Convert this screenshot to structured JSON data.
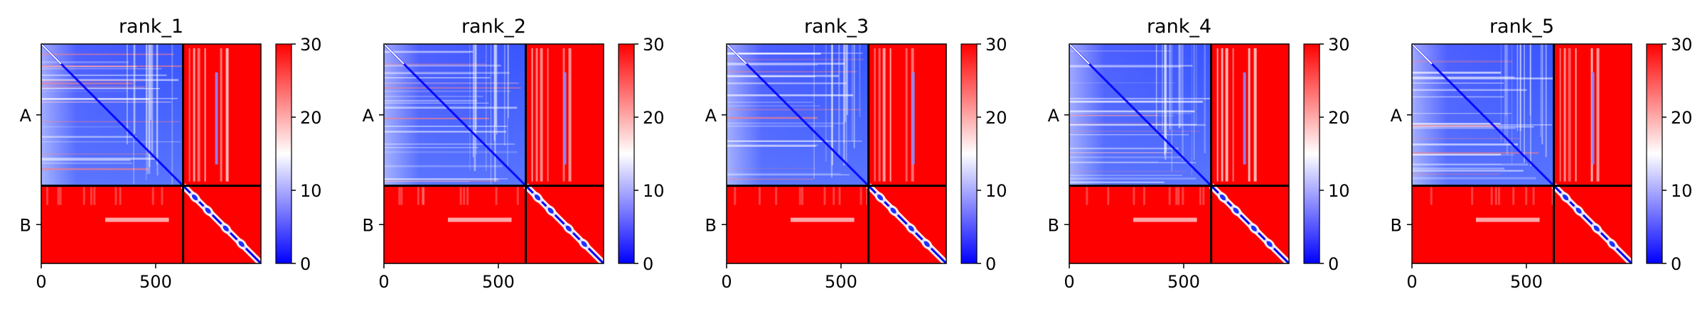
{
  "chart_data": [
    {
      "type": "heatmap",
      "title": "rank_1",
      "chains": [
        "A",
        "B"
      ],
      "xticks": [
        0,
        500
      ],
      "colorbar": {
        "ticks": [
          0,
          10,
          20,
          30
        ],
        "min": 0,
        "max": 30
      }
    },
    {
      "type": "heatmap",
      "title": "rank_2",
      "chains": [
        "A",
        "B"
      ],
      "xticks": [
        0,
        500
      ],
      "colorbar": {
        "ticks": [
          0,
          10,
          20,
          30
        ],
        "min": 0,
        "max": 30
      }
    },
    {
      "type": "heatmap",
      "title": "rank_3",
      "chains": [
        "A",
        "B"
      ],
      "xticks": [
        0,
        500
      ],
      "colorbar": {
        "ticks": [
          0,
          10,
          20,
          30
        ],
        "min": 0,
        "max": 30
      }
    },
    {
      "type": "heatmap",
      "title": "rank_4",
      "chains": [
        "A",
        "B"
      ],
      "xticks": [
        0,
        500
      ],
      "colorbar": {
        "ticks": [
          0,
          10,
          20,
          30
        ],
        "min": 0,
        "max": 30
      }
    },
    {
      "type": "heatmap",
      "title": "rank_5",
      "chains": [
        "A",
        "B"
      ],
      "xticks": [
        0,
        500
      ],
      "colorbar": {
        "ticks": [
          0,
          10,
          20,
          30
        ],
        "min": 0,
        "max": 30
      }
    }
  ],
  "shared": {
    "residue_range": [
      0,
      960
    ],
    "chain_A_length": 620,
    "colormap": "bwr",
    "colors": {
      "low": "#0000ff",
      "mid": "#ffffff",
      "high": "#ff0000"
    }
  }
}
